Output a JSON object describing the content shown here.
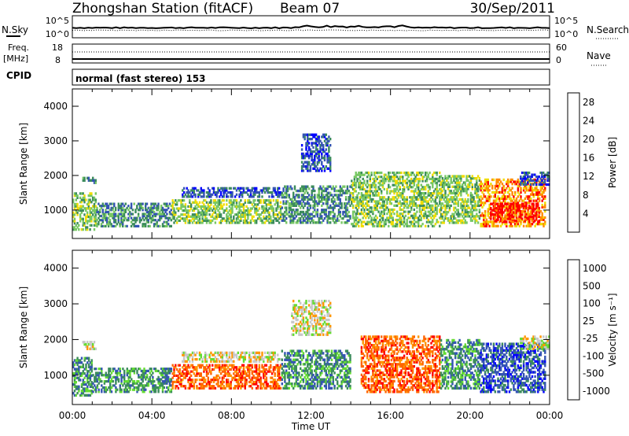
{
  "header": {
    "station": "Zhongshan Station (fitACF)",
    "beam": "Beam 07",
    "date": "30/Sep/2011",
    "cpid_text": "normal (fast stereo) 153"
  },
  "strip_labels": {
    "nsky": "N.Sky",
    "freq_top": "Freq.",
    "freq_unit": "[MHz]",
    "cpid": "CPID",
    "nsearch": "N.Search",
    "nave": "Nave",
    "noise_top": "10^5",
    "noise_bottom": "10^0",
    "freq_max": "18",
    "freq_min": "8",
    "nave_max": "60",
    "nave_min": "0"
  },
  "colors": {
    "power": [
      "#0000ff",
      "#3454b4",
      "#3c8c5c",
      "#78c864",
      "#f0dc00",
      "#ff8c00",
      "#ff0000"
    ],
    "velocity": [
      "#ff0000",
      "#ff6400",
      "#ff9600",
      "#c8c8c8",
      "#64dc32",
      "#3c8c5c",
      "#3454b4",
      "#0000ff"
    ]
  },
  "chart_data": [
    {
      "type": "heatmap",
      "title": "",
      "xlabel": "Time UT",
      "ylabel": "Slant Range [km]",
      "xlim": [
        0,
        24
      ],
      "ylim": [
        180,
        4500
      ],
      "x_ticks": [
        "00:00",
        "04:00",
        "08:00",
        "12:00",
        "16:00",
        "20:00",
        "00:00"
      ],
      "y_ticks": [
        1000,
        2000,
        3000,
        4000
      ],
      "colorbar": {
        "label": "Power [dB]",
        "ticks": [
          4,
          8,
          12,
          16,
          20,
          24,
          28
        ],
        "range": [
          0,
          30
        ]
      },
      "regions": [
        {
          "t0": 0.0,
          "t1": 1.2,
          "r0": 400,
          "r1": 1500,
          "level": 3
        },
        {
          "t0": 1.2,
          "t1": 5.0,
          "r0": 500,
          "r1": 1200,
          "level": 2
        },
        {
          "t0": 5.0,
          "t1": 10.5,
          "r0": 600,
          "r1": 1300,
          "level": 3
        },
        {
          "t0": 5.5,
          "t1": 10.5,
          "r0": 1350,
          "r1": 1650,
          "level": 1
        },
        {
          "t0": 10.5,
          "t1": 14.0,
          "r0": 600,
          "r1": 1700,
          "level": 2
        },
        {
          "t0": 14.0,
          "t1": 18.5,
          "r0": 500,
          "r1": 2100,
          "level": 3
        },
        {
          "t0": 18.5,
          "t1": 20.5,
          "r0": 600,
          "r1": 2000,
          "level": 3
        },
        {
          "t0": 20.5,
          "t1": 23.8,
          "r0": 500,
          "r1": 1900,
          "level": 5
        },
        {
          "t0": 21.0,
          "t1": 23.5,
          "r0": 650,
          "r1": 1200,
          "level": 6
        },
        {
          "t0": 11.5,
          "t1": 13.0,
          "r0": 2100,
          "r1": 3200,
          "level": 1
        },
        {
          "t0": 22.5,
          "t1": 24.0,
          "r0": 1700,
          "r1": 2100,
          "level": 1
        },
        {
          "t0": 0.5,
          "t1": 1.2,
          "r0": 1750,
          "r1": 1950,
          "level": 2
        }
      ]
    },
    {
      "type": "heatmap",
      "title": "",
      "xlabel": "Time UT",
      "ylabel": "Slant Range [km]",
      "xlim": [
        0,
        24
      ],
      "ylim": [
        180,
        4500
      ],
      "x_ticks": [
        "00:00",
        "04:00",
        "08:00",
        "12:00",
        "16:00",
        "20:00",
        "00:00"
      ],
      "y_ticks": [
        1000,
        2000,
        3000,
        4000
      ],
      "colorbar": {
        "label": "Velocity [m s⁻¹]",
        "ticks": [
          "1000",
          "500",
          "100",
          "25",
          "-25",
          "-100",
          "-500",
          "-1000"
        ],
        "range": [
          -1200,
          1200
        ]
      },
      "regions": [
        {
          "t0": 0.0,
          "t1": 1.0,
          "r0": 400,
          "r1": 1500,
          "level": 5
        },
        {
          "t0": 1.0,
          "t1": 5.0,
          "r0": 500,
          "r1": 1200,
          "level": 5
        },
        {
          "t0": 5.0,
          "t1": 10.5,
          "r0": 600,
          "r1": 1300,
          "level": 1
        },
        {
          "t0": 5.5,
          "t1": 10.5,
          "r0": 1350,
          "r1": 1650,
          "level": 3
        },
        {
          "t0": 10.5,
          "t1": 14.0,
          "r0": 600,
          "r1": 1700,
          "level": 5
        },
        {
          "t0": 14.5,
          "t1": 18.5,
          "r0": 500,
          "r1": 2100,
          "level": 1
        },
        {
          "t0": 18.5,
          "t1": 20.5,
          "r0": 600,
          "r1": 2000,
          "level": 5
        },
        {
          "t0": 20.5,
          "t1": 23.8,
          "r0": 500,
          "r1": 1900,
          "level": 6
        },
        {
          "t0": 11.0,
          "t1": 13.0,
          "r0": 2100,
          "r1": 3100,
          "level": 3
        },
        {
          "t0": 22.5,
          "t1": 24.0,
          "r0": 1700,
          "r1": 2100,
          "level": 3
        },
        {
          "t0": 0.5,
          "t1": 1.2,
          "r0": 1700,
          "r1": 1950,
          "level": 3
        }
      ]
    }
  ]
}
